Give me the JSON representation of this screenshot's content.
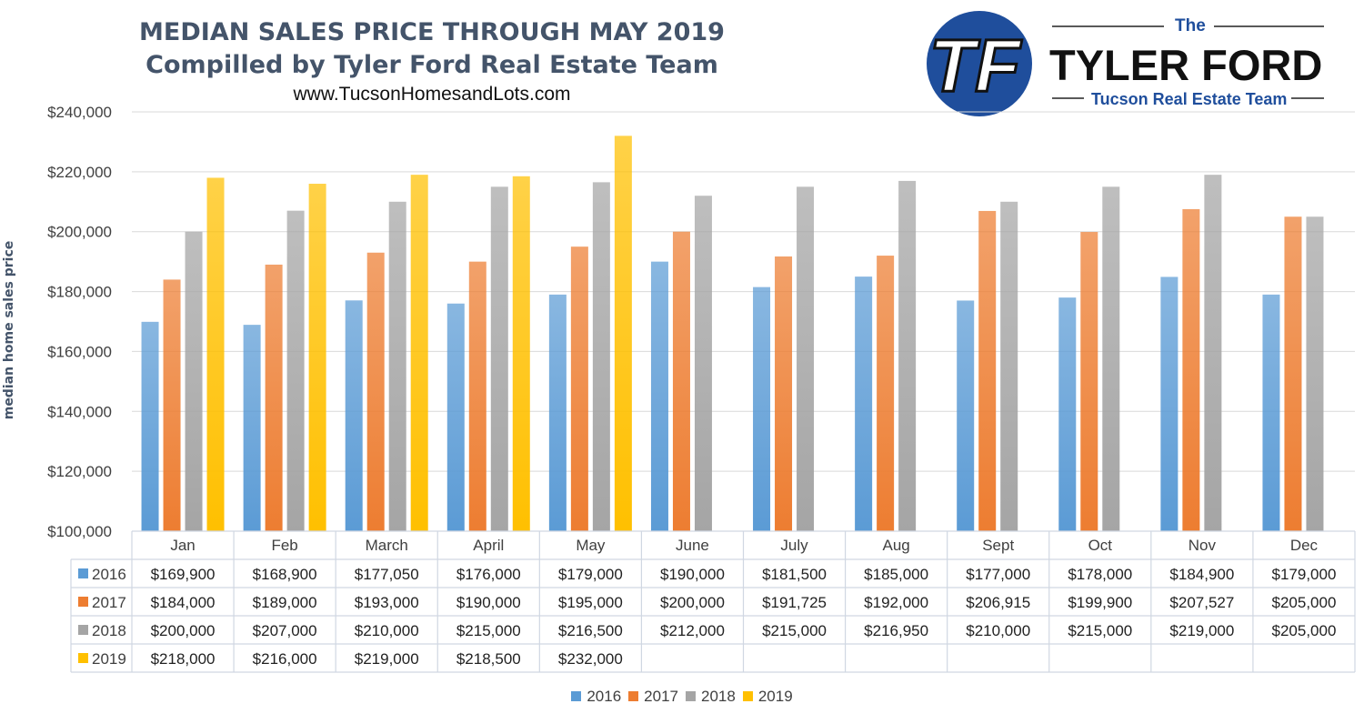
{
  "header": {
    "title_line1": "MEDIAN SALES PRICE THROUGH MAY 2019",
    "title_line2": "Compilled by Tyler Ford Real Estate Team",
    "url": "www.TucsonHomesandLots.com"
  },
  "logo": {
    "the": "The",
    "name": "TYLER FORD",
    "subtitle": "Tucson Real Estate Team",
    "monogram": "TF"
  },
  "chart_data": {
    "type": "bar",
    "title": "MEDIAN SALES PRICE THROUGH MAY 2019",
    "subtitle": "Compilled by Tyler Ford Real Estate Team",
    "xlabel": "",
    "ylabel": "median home sales price",
    "ylim": [
      100000,
      240000
    ],
    "yticks": [
      100000,
      120000,
      140000,
      160000,
      180000,
      200000,
      220000,
      240000
    ],
    "ytick_labels": [
      "$100,000",
      "$120,000",
      "$140,000",
      "$160,000",
      "$180,000",
      "$200,000",
      "$220,000",
      "$240,000"
    ],
    "grid": true,
    "legend_position": "bottom",
    "categories": [
      "Jan",
      "Feb",
      "March",
      "April",
      "May",
      "June",
      "July",
      "Aug",
      "Sept",
      "Oct",
      "Nov",
      "Dec"
    ],
    "series": [
      {
        "name": "2016",
        "color": "#5b9bd5",
        "values": [
          169900,
          168900,
          177050,
          176000,
          179000,
          190000,
          181500,
          185000,
          177000,
          178000,
          184900,
          179000
        ],
        "labels": [
          "$169,900",
          "$168,900",
          "$177,050",
          "$176,000",
          "$179,000",
          "$190,000",
          "$181,500",
          "$185,000",
          "$177,000",
          "$178,000",
          "$184,900",
          "$179,000"
        ]
      },
      {
        "name": "2017",
        "color": "#ed7d31",
        "values": [
          184000,
          189000,
          193000,
          190000,
          195000,
          200000,
          191725,
          192000,
          206915,
          199900,
          207527,
          205000
        ],
        "labels": [
          "$184,000",
          "$189,000",
          "$193,000",
          "$190,000",
          "$195,000",
          "$200,000",
          "$191,725",
          "$192,000",
          "$206,915",
          "$199,900",
          "$207,527",
          "$205,000"
        ]
      },
      {
        "name": "2018",
        "color": "#a5a5a5",
        "values": [
          200000,
          207000,
          210000,
          215000,
          216500,
          212000,
          215000,
          216950,
          210000,
          215000,
          219000,
          205000
        ],
        "labels": [
          "$200,000",
          "$207,000",
          "$210,000",
          "$215,000",
          "$216,500",
          "$212,000",
          "$215,000",
          "$216,950",
          "$210,000",
          "$215,000",
          "$219,000",
          "$205,000"
        ]
      },
      {
        "name": "2019",
        "color": "#ffc000",
        "values": [
          218000,
          216000,
          219000,
          218500,
          232000,
          null,
          null,
          null,
          null,
          null,
          null,
          null
        ],
        "labels": [
          "$218,000",
          "$216,000",
          "$219,000",
          "$218,500",
          "$232,000",
          "",
          "",
          "",
          "",
          "",
          "",
          ""
        ]
      }
    ]
  }
}
